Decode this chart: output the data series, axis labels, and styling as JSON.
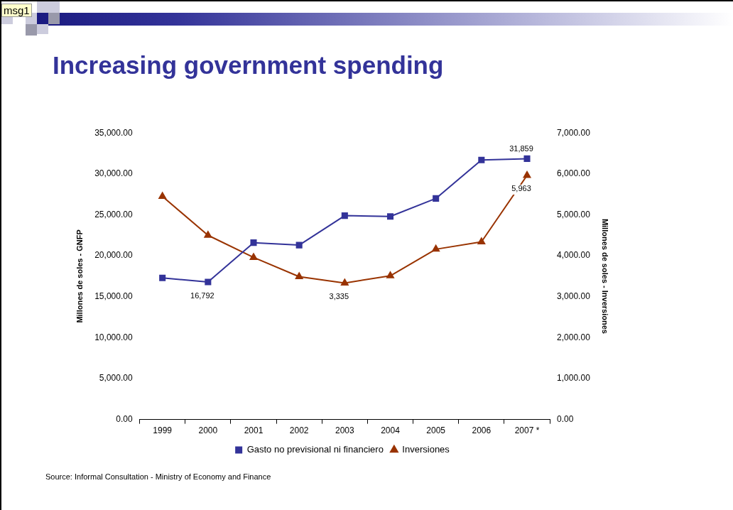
{
  "chart_data": {
    "type": "line",
    "title": "Increasing government spending",
    "categories": [
      "1999",
      "2000",
      "2001",
      "2002",
      "2003",
      "2004",
      "2005",
      "2006",
      "2007 *"
    ],
    "series": [
      {
        "name": "Gasto no previsional ni financiero",
        "color": "#333399",
        "marker": "square",
        "values": [
          17300,
          16792,
          21600,
          21300,
          24900,
          24800,
          27000,
          31700,
          31859
        ],
        "value_labels": [
          null,
          "16,792",
          null,
          null,
          null,
          null,
          null,
          null,
          "31,859"
        ]
      },
      {
        "name": "Inversiones",
        "color": "#993300",
        "marker": "triangle",
        "axis": "y2",
        "values": [
          5450,
          4500,
          3960,
          3490,
          3335,
          3510,
          4160,
          4340,
          5963
        ],
        "value_labels": [
          null,
          null,
          null,
          null,
          "3,335",
          null,
          null,
          null,
          "5,963"
        ]
      }
    ],
    "ylabel": "Millones de soles - GNFP",
    "y2label": "Millones de soles - Inversiones",
    "ylim": [
      0,
      35000
    ],
    "yticks": [
      {
        "value": 0,
        "label": "0.00"
      },
      {
        "value": 5000,
        "label": "5,000.00"
      },
      {
        "value": 10000,
        "label": "10,000.00"
      },
      {
        "value": 15000,
        "label": "15,000.00"
      },
      {
        "value": 20000,
        "label": "20,000.00"
      },
      {
        "value": 25000,
        "label": "25,000.00"
      },
      {
        "value": 30000,
        "label": "30,000.00"
      },
      {
        "value": 35000,
        "label": "35,000.00"
      }
    ],
    "y2lim": [
      0,
      7000
    ],
    "y2ticks": [
      {
        "value": 0,
        "label": "0.00"
      },
      {
        "value": 1000,
        "label": "1,000.00"
      },
      {
        "value": 2000,
        "label": "2,000.00"
      },
      {
        "value": 3000,
        "label": "3,000.00"
      },
      {
        "value": 4000,
        "label": "4,000.00"
      },
      {
        "value": 5000,
        "label": "5,000.00"
      },
      {
        "value": 6000,
        "label": "6,000.00"
      },
      {
        "value": 7000,
        "label": "7,000.00"
      }
    ],
    "grid": false,
    "legend": "bottom",
    "line_style": "solid",
    "annotations": [
      "msg1",
      "Source: Informal Consultation - Ministry of Economy and Finance"
    ]
  }
}
